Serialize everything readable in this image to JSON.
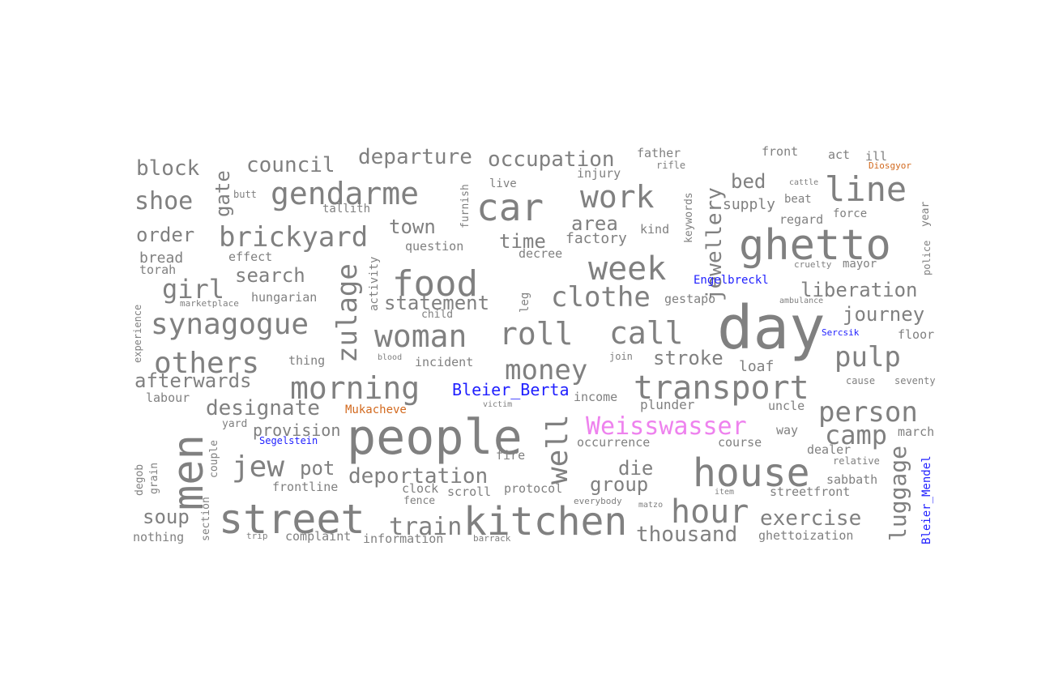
{
  "colors": {
    "default": "#808080",
    "blue": "#1f1fff",
    "pink": "#ee82ee",
    "orange": "#d2691e"
  },
  "words": [
    {
      "text": "day",
      "color": "default"
    },
    {
      "text": "people",
      "color": "default"
    },
    {
      "text": "ghetto",
      "color": "default"
    },
    {
      "text": "men",
      "color": "default"
    },
    {
      "text": "street",
      "color": "default"
    },
    {
      "text": "kitchen",
      "color": "default"
    },
    {
      "text": "house",
      "color": "default"
    },
    {
      "text": "car",
      "color": "default"
    },
    {
      "text": "food",
      "color": "default"
    },
    {
      "text": "transport",
      "color": "default"
    },
    {
      "text": "line",
      "color": "default"
    },
    {
      "text": "week",
      "color": "default"
    },
    {
      "text": "woman",
      "color": "default"
    },
    {
      "text": "roll",
      "color": "default"
    },
    {
      "text": "call",
      "color": "default"
    },
    {
      "text": "gendarme",
      "color": "default"
    },
    {
      "text": "morning",
      "color": "default"
    },
    {
      "text": "work",
      "color": "default"
    },
    {
      "text": "hour",
      "color": "default"
    },
    {
      "text": "synagogue",
      "color": "default"
    },
    {
      "text": "others",
      "color": "default"
    },
    {
      "text": "brickyard",
      "color": "default"
    },
    {
      "text": "person",
      "color": "default"
    },
    {
      "text": "clothe",
      "color": "default"
    },
    {
      "text": "money",
      "color": "default"
    },
    {
      "text": "jew",
      "color": "default"
    },
    {
      "text": "pulp",
      "color": "default"
    },
    {
      "text": "camp",
      "color": "default"
    },
    {
      "text": "Weisswasser",
      "color": "pink"
    },
    {
      "text": "well",
      "color": "default"
    },
    {
      "text": "zulage",
      "color": "default"
    },
    {
      "text": "girl",
      "color": "default"
    },
    {
      "text": "deportation",
      "color": "default"
    },
    {
      "text": "shoe",
      "color": "default"
    },
    {
      "text": "occupation",
      "color": "default"
    },
    {
      "text": "jewellery",
      "color": "default"
    },
    {
      "text": "luggage",
      "color": "default"
    },
    {
      "text": "exercise",
      "color": "default"
    },
    {
      "text": "thousand",
      "color": "default"
    },
    {
      "text": "train",
      "color": "default"
    },
    {
      "text": "liberation",
      "color": "default"
    },
    {
      "text": "designate",
      "color": "default"
    },
    {
      "text": "departure",
      "color": "default"
    },
    {
      "text": "council",
      "color": "default"
    },
    {
      "text": "statement",
      "color": "default"
    },
    {
      "text": "afterwards",
      "color": "default"
    },
    {
      "text": "journey",
      "color": "default"
    },
    {
      "text": "block",
      "color": "default"
    },
    {
      "text": "search",
      "color": "default"
    },
    {
      "text": "stroke",
      "color": "default"
    },
    {
      "text": "die",
      "color": "default"
    },
    {
      "text": "group",
      "color": "default"
    },
    {
      "text": "town",
      "color": "default"
    },
    {
      "text": "time",
      "color": "default"
    },
    {
      "text": "pot",
      "color": "default"
    },
    {
      "text": "soup",
      "color": "default"
    },
    {
      "text": "order",
      "color": "default"
    },
    {
      "text": "area",
      "color": "default"
    },
    {
      "text": "bed",
      "color": "default"
    },
    {
      "text": "gate",
      "color": "default"
    },
    {
      "text": "Bleier_Berta",
      "color": "blue"
    },
    {
      "text": "provision",
      "color": "default"
    },
    {
      "text": "factory",
      "color": "default"
    },
    {
      "text": "supply",
      "color": "default"
    },
    {
      "text": "bread",
      "color": "default"
    },
    {
      "text": "loaf",
      "color": "default"
    },
    {
      "text": "Bleier_Mendel",
      "color": "blue"
    },
    {
      "text": "Engelbreckl",
      "color": "blue"
    },
    {
      "text": "Mukacheve",
      "color": "orange"
    },
    {
      "text": "Segelstein",
      "color": "blue"
    },
    {
      "text": "plunder",
      "color": "default"
    },
    {
      "text": "income",
      "color": "default"
    },
    {
      "text": "incident",
      "color": "default"
    },
    {
      "text": "question",
      "color": "default"
    },
    {
      "text": "decree",
      "color": "default"
    },
    {
      "text": "effect",
      "color": "default"
    },
    {
      "text": "torah",
      "color": "default"
    },
    {
      "text": "hungarian",
      "color": "default"
    },
    {
      "text": "thing",
      "color": "default"
    },
    {
      "text": "labour",
      "color": "default"
    },
    {
      "text": "yard",
      "color": "default"
    },
    {
      "text": "couple",
      "color": "default"
    },
    {
      "text": "grain",
      "color": "default"
    },
    {
      "text": "degob",
      "color": "default"
    },
    {
      "text": "section",
      "color": "default"
    },
    {
      "text": "nothing",
      "color": "default"
    },
    {
      "text": "complaint",
      "color": "default"
    },
    {
      "text": "information",
      "color": "default"
    },
    {
      "text": "frontline",
      "color": "default"
    },
    {
      "text": "clock",
      "color": "default"
    },
    {
      "text": "scroll",
      "color": "default"
    },
    {
      "text": "protocol",
      "color": "default"
    },
    {
      "text": "fence",
      "color": "default"
    },
    {
      "text": "fire",
      "color": "default"
    },
    {
      "text": "occurrence",
      "color": "default"
    },
    {
      "text": "course",
      "color": "default"
    },
    {
      "text": "way",
      "color": "default"
    },
    {
      "text": "uncle",
      "color": "default"
    },
    {
      "text": "dealer",
      "color": "default"
    },
    {
      "text": "march",
      "color": "default"
    },
    {
      "text": "relative",
      "color": "default"
    },
    {
      "text": "sabbath",
      "color": "default"
    },
    {
      "text": "streetfront",
      "color": "default"
    },
    {
      "text": "ghettoization",
      "color": "default"
    },
    {
      "text": "father",
      "color": "default"
    },
    {
      "text": "rifle",
      "color": "default"
    },
    {
      "text": "injury",
      "color": "default"
    },
    {
      "text": "front",
      "color": "default"
    },
    {
      "text": "act",
      "color": "default"
    },
    {
      "text": "ill",
      "color": "default"
    },
    {
      "text": "Diosgyor",
      "color": "orange"
    },
    {
      "text": "live",
      "color": "default"
    },
    {
      "text": "butt",
      "color": "default"
    },
    {
      "text": "tallith",
      "color": "default"
    },
    {
      "text": "furnish",
      "color": "default"
    },
    {
      "text": "keywords",
      "color": "default"
    },
    {
      "text": "cattle",
      "color": "default"
    },
    {
      "text": "beat",
      "color": "default"
    },
    {
      "text": "regard",
      "color": "default"
    },
    {
      "text": "force",
      "color": "default"
    },
    {
      "text": "year",
      "color": "default"
    },
    {
      "text": "kind",
      "color": "default"
    },
    {
      "text": "police",
      "color": "default"
    },
    {
      "text": "mayor",
      "color": "default"
    },
    {
      "text": "cruelty",
      "color": "default"
    },
    {
      "text": "gestapo",
      "color": "default"
    },
    {
      "text": "ambulance",
      "color": "default"
    },
    {
      "text": "floor",
      "color": "default"
    },
    {
      "text": "Sercsik",
      "color": "blue"
    },
    {
      "text": "cause",
      "color": "default"
    },
    {
      "text": "seventy",
      "color": "default"
    },
    {
      "text": "join",
      "color": "default"
    },
    {
      "text": "activity",
      "color": "default"
    },
    {
      "text": "leg",
      "color": "default"
    },
    {
      "text": "child",
      "color": "default"
    },
    {
      "text": "blood",
      "color": "default"
    },
    {
      "text": "victim",
      "color": "default"
    },
    {
      "text": "marketplace",
      "color": "default"
    },
    {
      "text": "experience",
      "color": "default"
    },
    {
      "text": "everybody",
      "color": "default"
    },
    {
      "text": "matzo",
      "color": "default"
    },
    {
      "text": "item",
      "color": "default"
    },
    {
      "text": "trip",
      "color": "default"
    },
    {
      "text": "barrack",
      "color": "default"
    }
  ]
}
